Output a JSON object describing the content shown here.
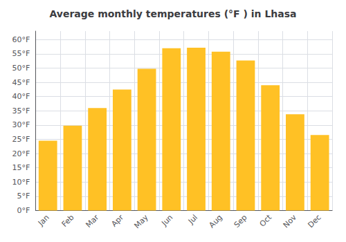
{
  "chart_data": {
    "type": "bar",
    "title": "Average monthly temperatures (°F ) in Lhasa",
    "categories": [
      "Jan",
      "Feb",
      "Mar",
      "Apr",
      "May",
      "Jun",
      "Jul",
      "Aug",
      "Sep",
      "Oct",
      "Nov",
      "Dec"
    ],
    "values": [
      24.5,
      29.8,
      36.0,
      42.5,
      49.8,
      57.0,
      57.2,
      55.8,
      52.7,
      44.0,
      33.8,
      26.5
    ],
    "color": "#FFC125",
    "ylim": [
      0,
      63
    ],
    "yticks": [
      {
        "value": 0,
        "label": "0°F"
      },
      {
        "value": 5,
        "label": "5°F"
      },
      {
        "value": 10,
        "label": "10°F"
      },
      {
        "value": 15,
        "label": "15°F"
      },
      {
        "value": 20,
        "label": "20°F"
      },
      {
        "value": 25,
        "label": "25°F"
      },
      {
        "value": 30,
        "label": "30°F"
      },
      {
        "value": 35,
        "label": "35°F"
      },
      {
        "value": 40,
        "label": "40°F"
      },
      {
        "value": 45,
        "label": "45°F"
      },
      {
        "value": 50,
        "label": "50°F"
      },
      {
        "value": 55,
        "label": "55°F"
      },
      {
        "value": 60,
        "label": "60°F"
      }
    ],
    "grid": true
  }
}
